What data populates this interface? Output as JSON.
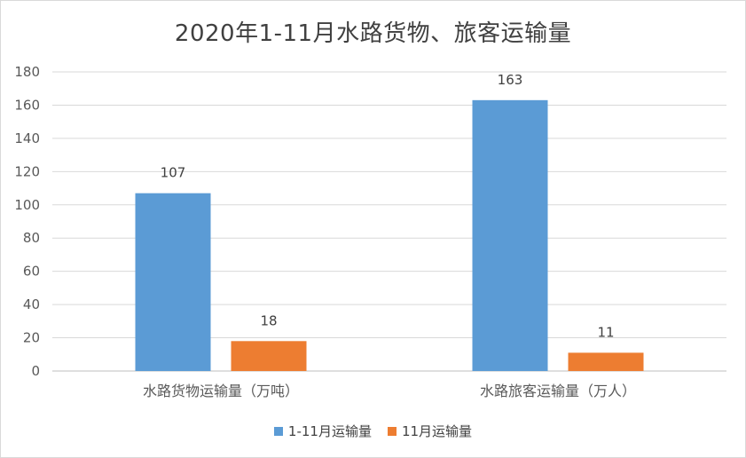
{
  "chart_data": {
    "type": "bar",
    "title": "2020年1-11月水路货物、旅客运输量",
    "categories": [
      "水路货物运输量（万吨）",
      "水路旅客运输量（万人）"
    ],
    "series": [
      {
        "name": "1-11月运输量",
        "values": [
          107,
          163
        ],
        "color": "#5b9bd5"
      },
      {
        "name": "11月运输量",
        "values": [
          18,
          11
        ],
        "color": "#ed7d31"
      }
    ],
    "ylim": [
      0,
      180
    ],
    "yticks": [
      0,
      20,
      40,
      60,
      80,
      100,
      120,
      140,
      160,
      180
    ],
    "grid": true,
    "legend_position": "bottom",
    "data_labels": true
  }
}
